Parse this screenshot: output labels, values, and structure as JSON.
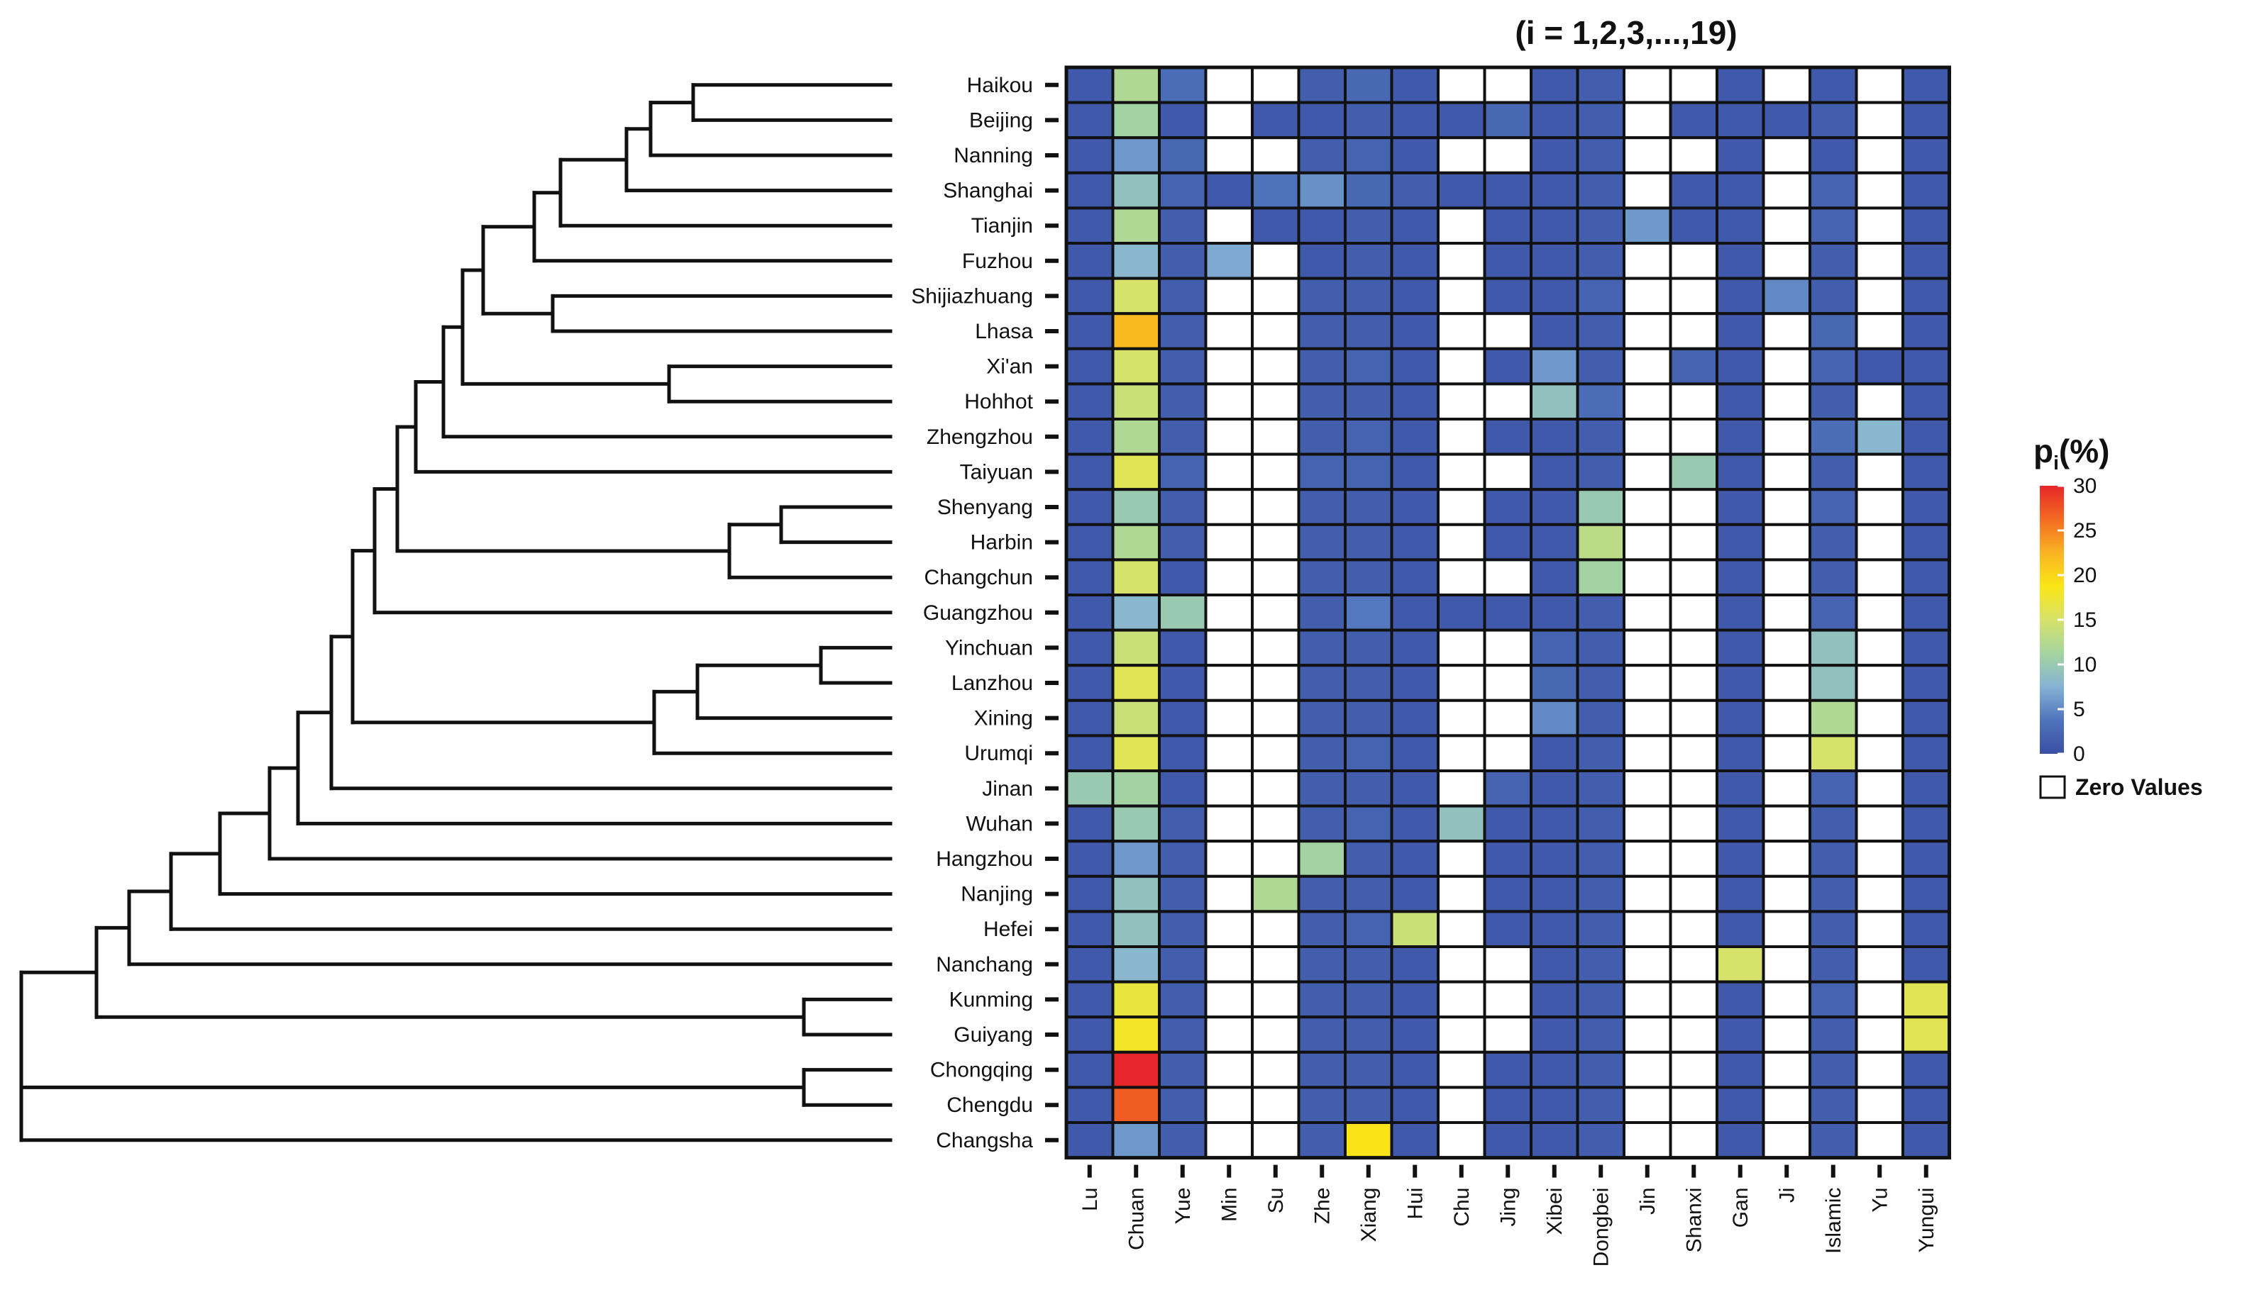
{
  "chart_data": {
    "type": "heatmap",
    "title": "(i = 1,2,3,...,19)",
    "rows": [
      "Haikou",
      "Beijing",
      "Nanning",
      "Shanghai",
      "Tianjin",
      "Fuzhou",
      "Shijiazhuang",
      "Lhasa",
      "Xi'an",
      "Hohhot",
      "Zhengzhou",
      "Taiyuan",
      "Shenyang",
      "Harbin",
      "Changchun",
      "Guangzhou",
      "Yinchuan",
      "Lanzhou",
      "Xining",
      "Urumqi",
      "Jinan",
      "Wuhan",
      "Hangzhou",
      "Nanjing",
      "Hefei",
      "Nanchang",
      "Kunming",
      "Guiyang",
      "Chongqing",
      "Chengdu",
      "Changsha"
    ],
    "columns": [
      "Lu",
      "Chuan",
      "Yue",
      "Min",
      "Su",
      "Zhe",
      "Xiang",
      "Hui",
      "Chu",
      "Jing",
      "Xibei",
      "Dongbei",
      "Jin",
      "Shanxi",
      "Gan",
      "Ji",
      "Islamic",
      "Yu",
      "Yungui"
    ],
    "values_percent": [
      [
        1,
        12,
        3,
        0,
        0,
        1.5,
        2.5,
        1,
        0,
        0,
        1,
        1.5,
        0,
        0,
        1,
        0,
        1,
        0,
        1
      ],
      [
        1,
        11,
        1,
        0,
        1,
        1,
        1.5,
        1,
        1,
        2.5,
        1,
        1.5,
        0,
        1,
        1,
        1,
        1.5,
        0,
        1
      ],
      [
        1,
        6,
        2.5,
        0,
        0,
        1.5,
        2,
        1,
        0,
        0,
        1,
        1.5,
        0,
        0,
        1,
        0,
        1,
        0,
        1
      ],
      [
        1,
        9,
        2,
        1,
        3.5,
        5.5,
        2.5,
        1.5,
        1,
        1,
        1,
        1.5,
        0,
        1,
        1,
        0,
        2,
        0,
        1
      ],
      [
        1,
        12,
        1.5,
        0,
        1,
        1,
        1.5,
        1,
        0,
        1,
        1,
        1.5,
        6,
        1,
        1,
        0,
        2,
        0,
        1
      ],
      [
        1,
        8,
        1.5,
        7,
        0,
        1,
        1.5,
        1,
        0,
        1,
        1,
        1.5,
        0,
        0,
        1,
        0,
        1.5,
        0,
        1
      ],
      [
        1,
        15,
        1.5,
        0,
        0,
        1.5,
        1.5,
        1,
        0,
        1,
        1,
        2,
        0,
        0,
        1,
        5,
        1.5,
        0,
        1
      ],
      [
        1,
        22,
        1.5,
        0,
        0,
        1.5,
        1.5,
        1,
        0,
        0,
        1,
        1.5,
        0,
        0,
        1,
        0,
        2.5,
        0,
        1
      ],
      [
        1,
        15,
        1.5,
        0,
        0,
        1.5,
        2,
        1,
        0,
        1,
        6,
        1.5,
        0,
        2,
        1,
        0,
        2,
        1,
        1
      ],
      [
        1,
        14,
        1.5,
        0,
        0,
        1.5,
        1.5,
        1,
        0,
        0,
        9,
        3,
        0,
        0,
        1,
        0,
        1.5,
        0,
        1
      ],
      [
        1,
        12,
        1.5,
        0,
        0,
        1.5,
        2,
        1,
        0,
        1,
        1,
        1.5,
        0,
        0,
        1,
        0,
        3,
        8,
        1
      ],
      [
        1,
        16,
        2,
        0,
        0,
        2,
        2,
        1,
        0,
        0,
        1,
        1.5,
        0,
        10,
        1,
        0,
        1.5,
        0,
        1
      ],
      [
        1,
        10,
        1.5,
        0,
        0,
        1.5,
        1.5,
        1,
        0,
        1,
        1,
        10,
        0,
        0,
        1,
        0,
        2,
        0,
        1
      ],
      [
        1,
        12,
        1.5,
        0,
        0,
        1.5,
        1.5,
        1,
        0,
        1,
        1,
        13,
        0,
        0,
        1,
        0,
        1.5,
        0,
        1
      ],
      [
        1,
        15,
        1,
        0,
        0,
        1.5,
        1.5,
        1,
        0,
        0,
        1,
        11,
        0,
        0,
        1,
        0,
        1.5,
        0,
        1
      ],
      [
        1,
        8,
        10,
        0,
        0,
        1.5,
        4,
        1,
        1,
        1,
        1,
        1.5,
        0,
        0,
        1,
        0,
        2,
        0,
        1
      ],
      [
        1,
        14,
        1,
        0,
        0,
        1.5,
        1.5,
        1,
        0,
        0,
        2,
        1.5,
        0,
        0,
        1,
        0,
        9,
        0,
        1
      ],
      [
        1,
        16,
        1,
        0,
        0,
        1.5,
        1.5,
        1,
        0,
        0,
        2.5,
        1.5,
        0,
        0,
        1,
        0,
        9,
        0,
        1
      ],
      [
        1,
        14,
        1,
        0,
        0,
        1.5,
        1.5,
        1,
        0,
        0,
        5,
        1.5,
        0,
        0,
        1,
        0,
        12,
        0,
        1
      ],
      [
        1,
        16,
        1,
        0,
        0,
        1.5,
        2,
        1,
        0,
        0,
        1,
        1.5,
        0,
        0,
        1,
        0,
        15,
        0,
        1
      ],
      [
        10,
        11,
        1,
        0,
        0,
        1.5,
        1.5,
        1,
        0,
        2,
        1,
        1.5,
        0,
        0,
        1,
        0,
        2,
        0,
        1
      ],
      [
        1,
        10,
        1.5,
        0,
        0,
        1.5,
        2,
        1,
        9,
        1,
        1,
        1.5,
        0,
        0,
        1,
        0,
        1.5,
        0,
        1
      ],
      [
        1,
        6,
        1.5,
        0,
        0,
        11,
        1.5,
        1,
        0,
        1,
        1,
        1.5,
        0,
        0,
        1,
        0,
        1.5,
        0,
        1
      ],
      [
        1,
        9,
        1.5,
        0,
        12,
        1.5,
        1.5,
        1,
        0,
        1,
        1,
        1.5,
        0,
        0,
        1,
        0,
        1.5,
        0,
        1
      ],
      [
        1,
        9,
        1.5,
        0,
        0,
        1.5,
        2,
        14,
        0,
        1,
        1,
        1.5,
        0,
        0,
        1,
        0,
        1.5,
        0,
        1
      ],
      [
        1,
        8,
        1.5,
        0,
        0,
        1.5,
        1.5,
        1,
        0,
        0,
        1,
        1.5,
        0,
        0,
        15,
        0,
        1.5,
        0,
        1
      ],
      [
        1,
        17,
        1.5,
        0,
        0,
        1.5,
        1.5,
        1,
        0,
        0,
        1,
        1.5,
        0,
        0,
        1,
        0,
        2,
        0,
        16
      ],
      [
        1,
        18,
        1.5,
        0,
        0,
        1.5,
        1.5,
        1,
        0,
        0,
        1,
        1.5,
        0,
        0,
        1,
        0,
        1.5,
        0,
        16
      ],
      [
        1,
        30,
        1.5,
        0,
        0,
        1.5,
        1.5,
        1,
        0,
        1,
        1,
        1.5,
        0,
        0,
        1,
        0,
        1.5,
        0,
        1
      ],
      [
        1,
        27,
        1.5,
        0,
        0,
        1.5,
        1.5,
        1,
        0,
        1,
        1,
        1.5,
        0,
        0,
        1,
        0,
        1.5,
        0,
        1
      ],
      [
        1,
        6,
        1.5,
        0,
        0,
        1.5,
        19,
        1,
        0,
        1,
        1,
        1.5,
        0,
        0,
        1,
        0,
        1.5,
        0,
        1
      ]
    ],
    "color_scale": {
      "min": 0,
      "max": 30,
      "colors": [
        "#3a4fa3",
        "#4f74bd",
        "#85b2d4",
        "#a5d59f",
        "#d6e26a",
        "#fae617",
        "#f9b322",
        "#f36b22",
        "#e6262a"
      ]
    },
    "dendrogram_order": "rows ordered by hierarchical clustering",
    "legend": {
      "title_main": "p",
      "title_sub": "i",
      "title_unit": "(%)",
      "ticks": [
        "30",
        "25",
        "20",
        "15",
        "10",
        "5",
        "0"
      ],
      "zero_label": "Zero Values",
      "placement": "right"
    }
  }
}
